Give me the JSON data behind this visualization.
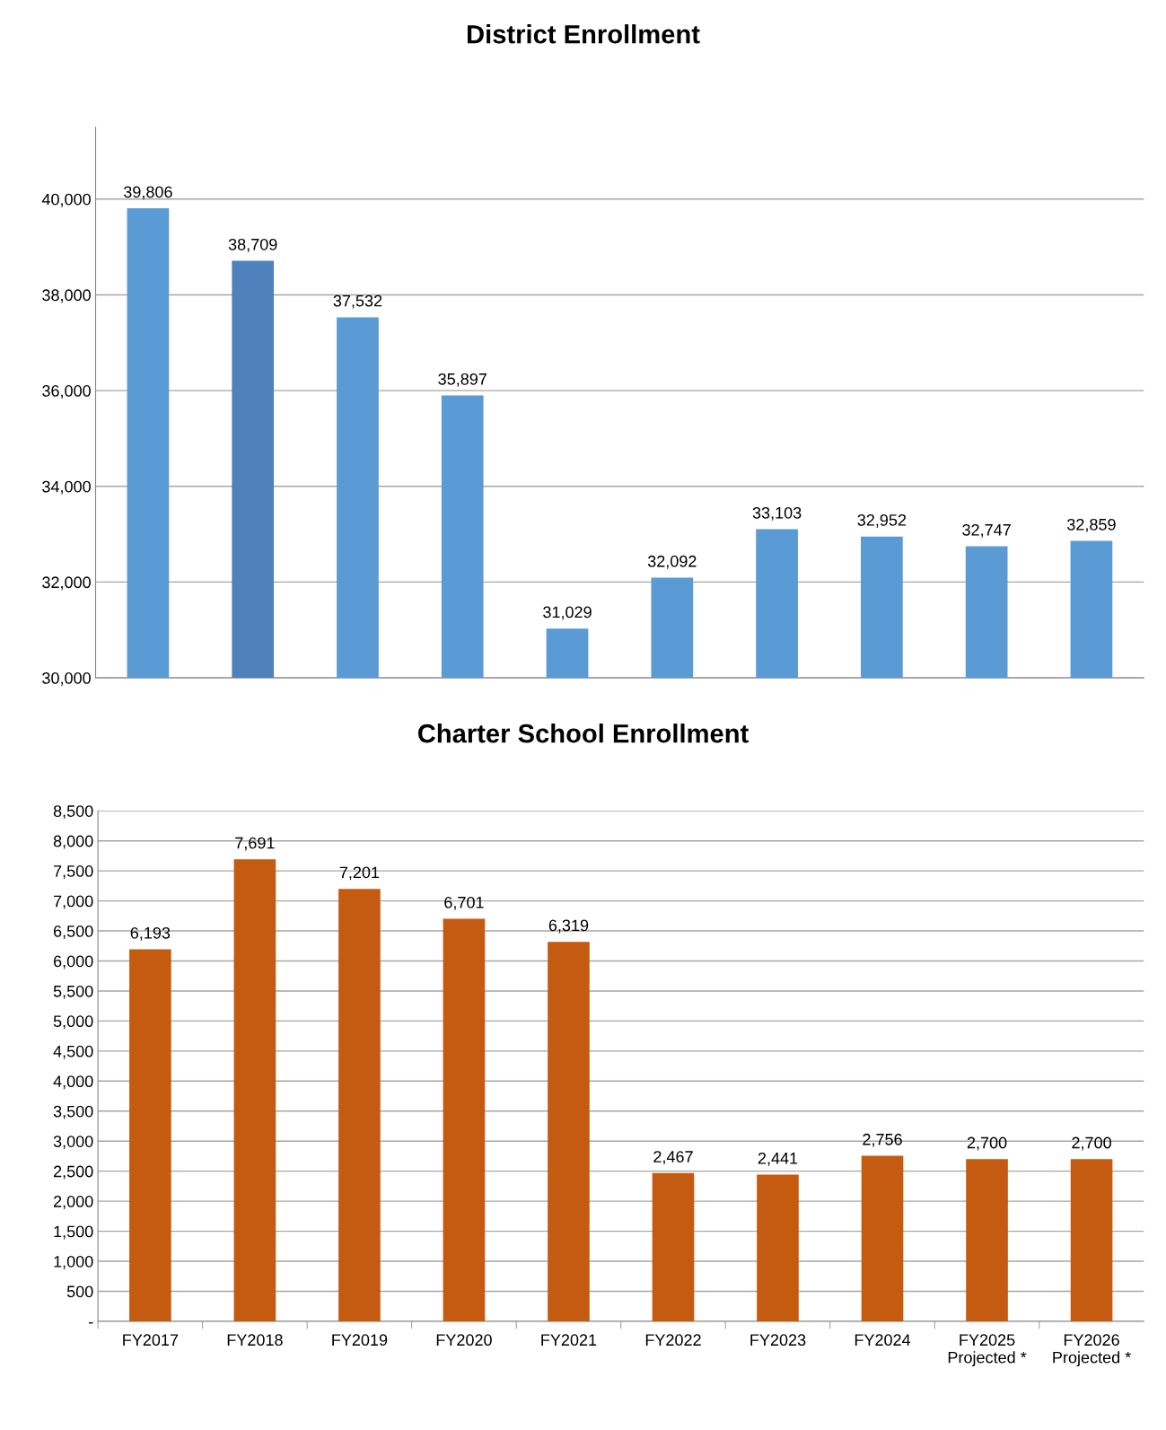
{
  "chart_data": [
    {
      "type": "bar",
      "title": "District Enrollment",
      "categories": [
        null,
        null,
        null,
        null,
        null,
        null,
        null,
        null,
        null,
        null
      ],
      "values": [
        39806,
        38709,
        37532,
        35897,
        31029,
        32092,
        33103,
        32952,
        32747,
        32859
      ],
      "colors": [
        "#5b9bd5",
        "#4f81bd",
        "#5b9bd5",
        "#5b9bd5",
        "#5b9bd5",
        "#5b9bd5",
        "#5b9bd5",
        "#5b9bd5",
        "#5b9bd5",
        "#5b9bd5"
      ],
      "ylim": [
        30000,
        41500
      ],
      "yticks": [
        {
          "value": 30000,
          "label": "30,000"
        },
        {
          "value": 32000,
          "label": "32,000"
        },
        {
          "value": 34000,
          "label": "34,000"
        },
        {
          "value": 36000,
          "label": "36,000"
        },
        {
          "value": 38000,
          "label": "38,000"
        },
        {
          "value": 40000,
          "label": "40,000"
        }
      ],
      "value_labels": [
        "39,806",
        "38,709",
        "37,532",
        "35,897",
        "31,029",
        "32,092",
        "33,103",
        "32,952",
        "32,747",
        "32,859"
      ],
      "grid": "y",
      "tick_labels": "y"
    },
    {
      "type": "bar",
      "title": "Charter School Enrollment",
      "categories": [
        "FY2017",
        "FY2018",
        "FY2019",
        "FY2020",
        "FY2021",
        "FY2022",
        "FY2023",
        "FY2024",
        "FY2025\nProjected *",
        "FY2026\nProjected *"
      ],
      "values": [
        6193,
        7691,
        7201,
        6701,
        6319,
        2467,
        2441,
        2756,
        2700,
        2700
      ],
      "color": "#c55a11",
      "ylim": [
        0,
        8500
      ],
      "yticks": [
        {
          "value": 0,
          "label": "-"
        },
        500,
        {
          "value": 1000,
          "label": "1,000"
        },
        {
          "value": 1500,
          "label": "1,500"
        },
        {
          "value": 2000,
          "label": "2,000"
        },
        {
          "value": 2500,
          "label": "2,500"
        },
        {
          "value": 3000,
          "label": "3,000"
        },
        {
          "value": 3500,
          "label": "3,500"
        },
        {
          "value": 4000,
          "label": "4,000"
        },
        {
          "value": 4500,
          "label": "4,500"
        },
        {
          "value": 5000,
          "label": "5,000"
        },
        {
          "value": 5500,
          "label": "5,500"
        },
        {
          "value": 6000,
          "label": "6,000"
        },
        {
          "value": 6500,
          "label": "6,500"
        },
        {
          "value": 7000,
          "label": "7,000"
        },
        {
          "value": 7500,
          "label": "7,500"
        },
        {
          "value": 8000,
          "label": "8,000"
        },
        {
          "value": 8500,
          "label": "8,500"
        }
      ],
      "value_labels": [
        "6,193",
        "7,691",
        "7,201",
        "6,701",
        "6,319",
        "2,467",
        "2,441",
        "2,756",
        "2,700",
        "2,700"
      ],
      "grid": "y"
    }
  ]
}
